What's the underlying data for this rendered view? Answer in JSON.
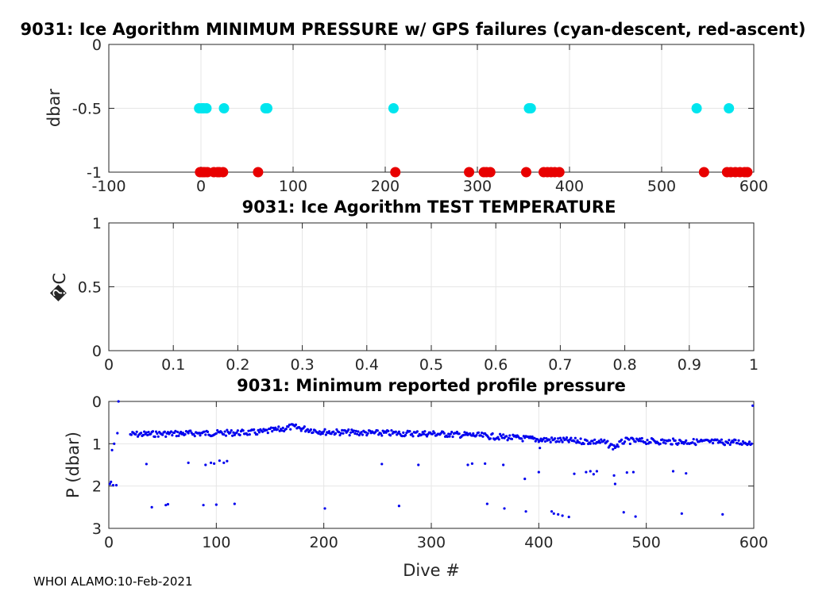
{
  "footer": "WHOI ALAMO:10-Feb-2021",
  "chart_data": [
    {
      "type": "scatter",
      "title": "9031: Ice Agorithm MINIMUM PRESSURE w/ GPS failures (cyan-descent, red-ascent)",
      "xlabel": "",
      "ylabel": "dbar",
      "xlim": [
        -100,
        600
      ],
      "ylim": [
        0,
        -1
      ],
      "reversed_y": true,
      "xticks": [
        -100,
        0,
        100,
        200,
        300,
        400,
        500,
        600
      ],
      "xtick_labels": [
        "-100",
        "0",
        "100",
        "200",
        "300",
        "400",
        "500",
        "600"
      ],
      "yticks": [
        0,
        -0.5,
        -1
      ],
      "ytick_labels": [
        "0",
        "-0.5",
        "-1"
      ],
      "grid": true,
      "series": [
        {
          "name": "descent",
          "color": "#00e5ee",
          "marker_size": 6.5,
          "x": [
            -2,
            1,
            3,
            6,
            25,
            70,
            72,
            209,
            356,
            358,
            538,
            573
          ],
          "y": [
            -0.5,
            -0.5,
            -0.5,
            -0.5,
            -0.5,
            -0.5,
            -0.5,
            -0.5,
            -0.5,
            -0.5,
            -0.5,
            -0.5
          ]
        },
        {
          "name": "ascent",
          "color": "#e80000",
          "marker_size": 6.5,
          "x": [
            -1,
            2,
            4,
            7,
            14,
            18,
            20,
            24,
            62,
            211,
            291,
            307,
            310,
            314,
            353,
            372,
            376,
            380,
            384,
            389,
            546,
            571,
            575,
            580,
            585,
            590,
            593
          ],
          "y": [
            -1,
            -1,
            -1,
            -1,
            -1,
            -1,
            -1,
            -1,
            -1,
            -1,
            -1,
            -1,
            -1,
            -1,
            -1,
            -1,
            -1,
            -1,
            -1,
            -1,
            -1,
            -1,
            -1,
            -1,
            -1,
            -1,
            -1
          ]
        }
      ]
    },
    {
      "type": "scatter",
      "title": "9031: Ice Agorithm TEST TEMPERATURE",
      "xlabel": "",
      "ylabel": "�C",
      "xlim": [
        0,
        1
      ],
      "ylim": [
        0,
        1
      ],
      "xticks": [
        0,
        0.1,
        0.2,
        0.3,
        0.4,
        0.5,
        0.6,
        0.7,
        0.8,
        0.9,
        1
      ],
      "xtick_labels": [
        "0",
        "0.1",
        "0.2",
        "0.3",
        "0.4",
        "0.5",
        "0.6",
        "0.7",
        "0.8",
        "0.9",
        "1"
      ],
      "yticks": [
        0,
        0.5,
        1
      ],
      "ytick_labels": [
        "0",
        "0.5",
        "1"
      ],
      "grid": true,
      "series": []
    },
    {
      "type": "scatter",
      "title": "9031: Minimum reported profile pressure",
      "xlabel": "Dive #",
      "ylabel": "P (dbar)",
      "xlim": [
        0,
        600
      ],
      "ylim": [
        0,
        3
      ],
      "reversed_y": true,
      "xticks": [
        0,
        100,
        200,
        300,
        400,
        500,
        600
      ],
      "xtick_labels": [
        "0",
        "100",
        "200",
        "300",
        "400",
        "500",
        "600"
      ],
      "yticks": [
        0,
        1,
        2,
        3
      ],
      "ytick_labels": [
        "0",
        "1",
        "2",
        "3"
      ],
      "grid": true,
      "series": [
        {
          "name": "min pressure",
          "color": "#0000ee",
          "marker_size": 1.6,
          "main_band": [
            [
              20,
              0.78
            ],
            [
              60,
              0.76
            ],
            [
              100,
              0.75
            ],
            [
              140,
              0.73
            ],
            [
              160,
              0.66
            ],
            [
              170,
              0.6
            ],
            [
              200,
              0.72
            ],
            [
              250,
              0.75
            ],
            [
              300,
              0.76
            ],
            [
              340,
              0.8
            ],
            [
              370,
              0.85
            ],
            [
              400,
              0.9
            ],
            [
              430,
              0.93
            ],
            [
              460,
              0.96
            ],
            [
              470,
              1.08
            ],
            [
              480,
              0.93
            ],
            [
              520,
              0.95
            ],
            [
              560,
              0.96
            ],
            [
              600,
              0.97
            ]
          ],
          "x": [
            1,
            2,
            3,
            4,
            5,
            7,
            8,
            9,
            35,
            40,
            53,
            55,
            74,
            88,
            90,
            95,
            98,
            100,
            103,
            107,
            110,
            117,
            201,
            254,
            270,
            288,
            334,
            338,
            350,
            352,
            367,
            368,
            387,
            388,
            400,
            401,
            412,
            414,
            418,
            422,
            428,
            433,
            444,
            448,
            451,
            454,
            470,
            471,
            479,
            482,
            488,
            490,
            525,
            533,
            537,
            571,
            599
          ],
          "y": [
            1.95,
            1.9,
            1.15,
            1.98,
            1.0,
            1.98,
            0.75,
            0.0,
            1.48,
            2.5,
            2.45,
            2.43,
            1.45,
            2.45,
            1.5,
            1.45,
            1.47,
            2.44,
            1.4,
            1.45,
            1.41,
            2.42,
            2.53,
            1.48,
            2.47,
            1.5,
            1.5,
            1.47,
            1.47,
            2.42,
            1.5,
            2.53,
            1.83,
            2.6,
            1.67,
            1.1,
            2.6,
            2.65,
            2.67,
            2.7,
            2.73,
            1.71,
            1.67,
            1.65,
            1.72,
            1.65,
            1.75,
            1.95,
            2.62,
            1.68,
            1.67,
            2.72,
            1.65,
            2.65,
            1.7,
            2.67,
            0.1
          ]
        }
      ]
    }
  ]
}
